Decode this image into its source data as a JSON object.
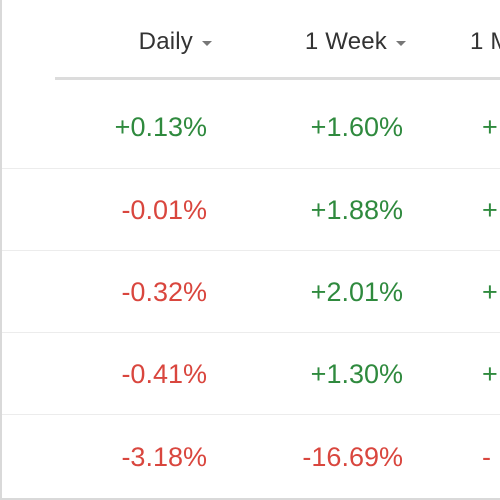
{
  "columns": {
    "daily": "Daily",
    "week": "1 Week",
    "next": "1 M"
  },
  "rows": [
    {
      "daily": "+0.13%",
      "week": "+1.60%",
      "next": "+"
    },
    {
      "daily": "-0.01%",
      "week": "+1.88%",
      "next": "+"
    },
    {
      "daily": "-0.32%",
      "week": "+2.01%",
      "next": "+"
    },
    {
      "daily": "-0.41%",
      "week": "+1.30%",
      "next": "+"
    },
    {
      "daily": "-3.18%",
      "week": "-16.69%",
      "next": "-"
    }
  ],
  "colors": {
    "positive": "#2f8a3e",
    "negative": "#d9463e",
    "header_text": "#333333"
  },
  "icons": {
    "sort": "chevron-down-icon"
  }
}
